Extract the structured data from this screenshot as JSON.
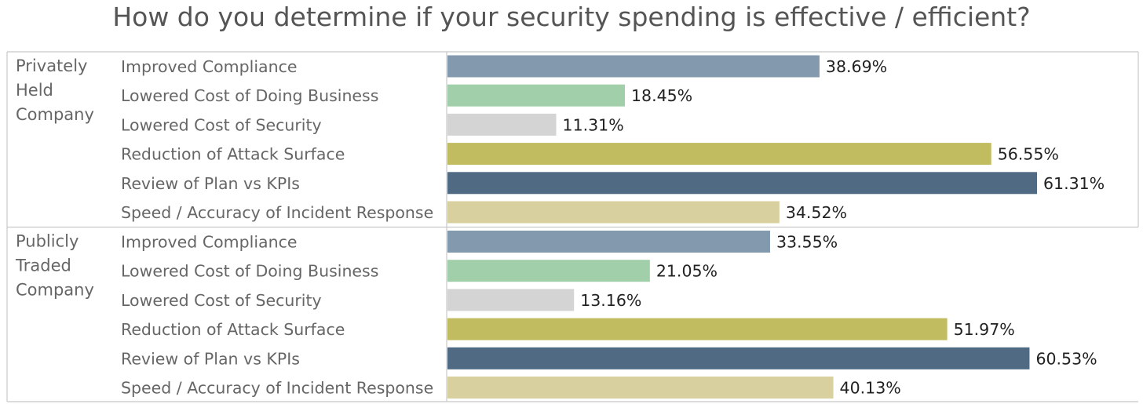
{
  "chart_data": {
    "type": "bar",
    "orientation": "horizontal",
    "title": "How do you determine if your security spending is effective / efficient?",
    "xlim": [
      0,
      66
    ],
    "value_suffix": "%",
    "categories": [
      "Improved Compliance",
      "Lowered Cost of Doing Business",
      "Lowered Cost of Security",
      "Reduction of Attack Surface",
      "Review of Plan vs KPIs",
      "Speed / Accuracy of Incident Response"
    ],
    "colors": [
      "#8399ae",
      "#a1cfa9",
      "#d4d4d4",
      "#c0bc5f",
      "#4f6a82",
      "#d8d09e"
    ],
    "groups": [
      {
        "label_lines": [
          "Privately",
          "Held",
          "Company"
        ],
        "values": [
          38.69,
          18.45,
          11.31,
          56.55,
          61.31,
          34.52
        ],
        "value_labels": [
          "38.69%",
          "18.45%",
          "11.31%",
          "56.55%",
          "61.31%",
          "34.52%"
        ]
      },
      {
        "label_lines": [
          "Publicly",
          "Traded",
          "Company"
        ],
        "values": [
          33.55,
          21.05,
          13.16,
          51.97,
          60.53,
          40.13
        ],
        "value_labels": [
          "33.55%",
          "21.05%",
          "13.16%",
          "51.97%",
          "60.53%",
          "40.13%"
        ]
      }
    ]
  }
}
